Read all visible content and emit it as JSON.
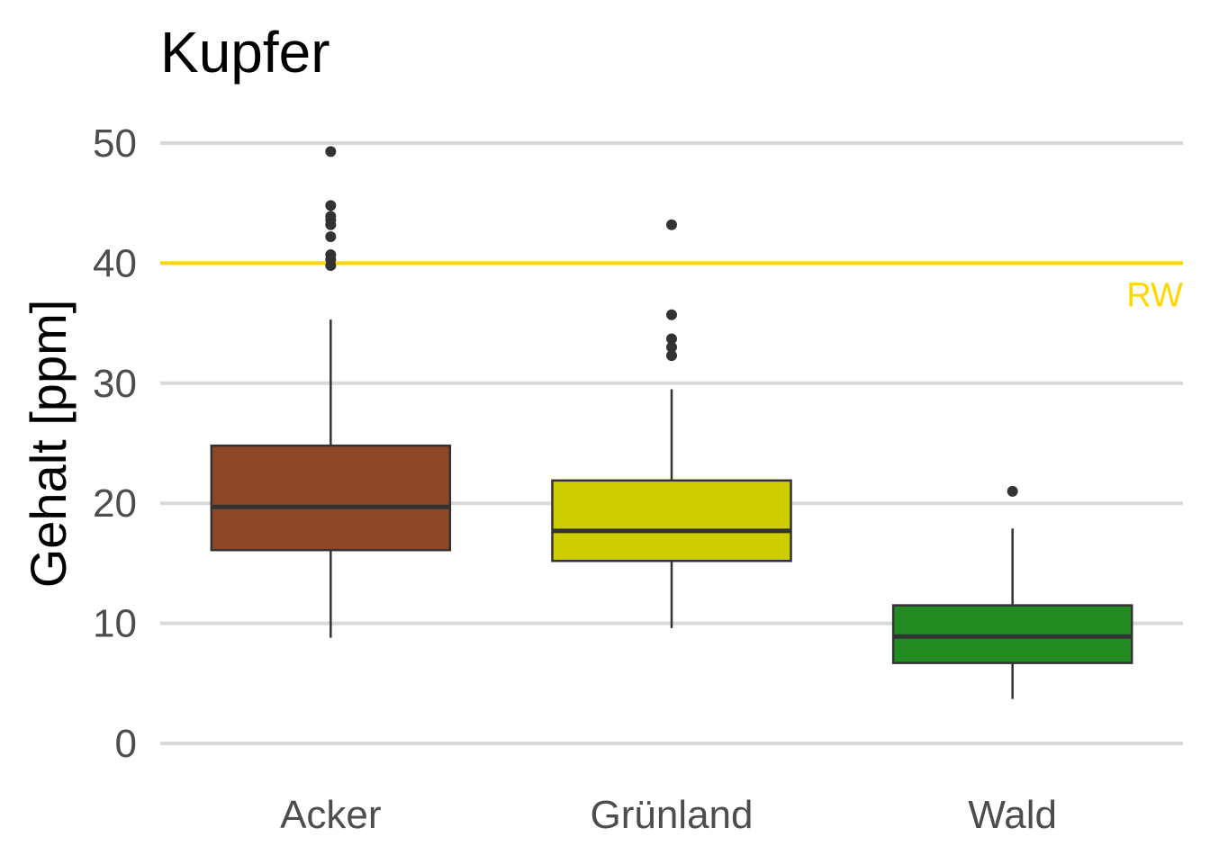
{
  "chart_data": {
    "type": "box",
    "title": "Kupfer",
    "xlabel": "",
    "ylabel": "Gehalt [ppm]",
    "ylim": [
      -3,
      53
    ],
    "yticks": [
      0,
      10,
      20,
      30,
      40,
      50
    ],
    "grid": "horizontal",
    "categories": [
      "Acker",
      "Grünland",
      "Wald"
    ],
    "boxes": [
      {
        "category": "Acker",
        "color": "#8B4726",
        "whisker_low": 8.8,
        "q1": 16.1,
        "median": 19.7,
        "q3": 24.8,
        "whisker_high": 35.3,
        "outliers": [
          49.3,
          44.8,
          43.9,
          43.6,
          43.2,
          42.2,
          40.7,
          40.3,
          39.8
        ]
      },
      {
        "category": "Grünland",
        "color": "#CDCD00",
        "whisker_low": 9.6,
        "q1": 15.2,
        "median": 17.7,
        "q3": 21.9,
        "whisker_high": 29.5,
        "outliers": [
          43.2,
          35.7,
          33.7,
          33.0,
          32.3
        ]
      },
      {
        "category": "Wald",
        "color": "#228B22",
        "whisker_low": 3.7,
        "q1": 6.7,
        "median": 8.9,
        "q3": 11.5,
        "whisker_high": 17.9,
        "outliers": [
          21.0
        ]
      }
    ],
    "reference_line": {
      "value": 40,
      "label": "RW",
      "color": "#FFD700"
    }
  }
}
